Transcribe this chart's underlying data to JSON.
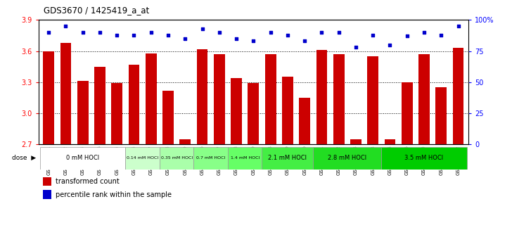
{
  "title": "GDS3670 / 1425419_a_at",
  "samples": [
    "GSM387601",
    "GSM387602",
    "GSM387605",
    "GSM387606",
    "GSM387645",
    "GSM387646",
    "GSM387647",
    "GSM387648",
    "GSM387649",
    "GSM387676",
    "GSM387677",
    "GSM387678",
    "GSM387679",
    "GSM387698",
    "GSM387699",
    "GSM387700",
    "GSM387701",
    "GSM387702",
    "GSM387703",
    "GSM387713",
    "GSM387714",
    "GSM387716",
    "GSM387750",
    "GSM387751",
    "GSM387752"
  ],
  "transformed_counts": [
    3.6,
    3.68,
    3.31,
    3.45,
    3.29,
    3.47,
    3.58,
    3.22,
    2.75,
    3.62,
    3.57,
    3.34,
    3.29,
    3.57,
    3.35,
    3.15,
    3.61,
    3.57,
    2.75,
    3.55,
    2.75,
    3.3,
    3.57,
    3.25,
    3.63
  ],
  "percentile_ranks": [
    90,
    95,
    90,
    90,
    88,
    88,
    90,
    88,
    85,
    93,
    90,
    85,
    83,
    90,
    88,
    83,
    90,
    90,
    78,
    88,
    80,
    87,
    90,
    88,
    95
  ],
  "dose_groups": [
    {
      "label": "0 mM HOCl",
      "start": 0,
      "end": 5,
      "bg": "#ffffff"
    },
    {
      "label": "0.14 mM HOCl",
      "start": 5,
      "end": 7,
      "bg": "#ccffcc"
    },
    {
      "label": "0.35 mM HOCl",
      "start": 7,
      "end": 9,
      "bg": "#aaffaa"
    },
    {
      "label": "0.7 mM HOCl",
      "start": 9,
      "end": 11,
      "bg": "#88ff88"
    },
    {
      "label": "1.4 mM HOCl",
      "start": 11,
      "end": 13,
      "bg": "#66ff66"
    },
    {
      "label": "2.1 mM HOCl",
      "start": 13,
      "end": 16,
      "bg": "#44ee44"
    },
    {
      "label": "2.8 mM HOCl",
      "start": 16,
      "end": 20,
      "bg": "#22dd22"
    },
    {
      "label": "3.5 mM HOCl",
      "start": 20,
      "end": 25,
      "bg": "#00cc00"
    }
  ],
  "bar_color": "#cc0000",
  "dot_color": "#0000cc",
  "ylim_left": [
    2.7,
    3.9
  ],
  "ylim_right": [
    0,
    100
  ],
  "yticks_left": [
    2.7,
    3.0,
    3.3,
    3.6,
    3.9
  ],
  "yticks_right": [
    0,
    25,
    50,
    75,
    100
  ],
  "bar_width": 0.65,
  "figsize": [
    7.28,
    3.54
  ],
  "dpi": 100
}
